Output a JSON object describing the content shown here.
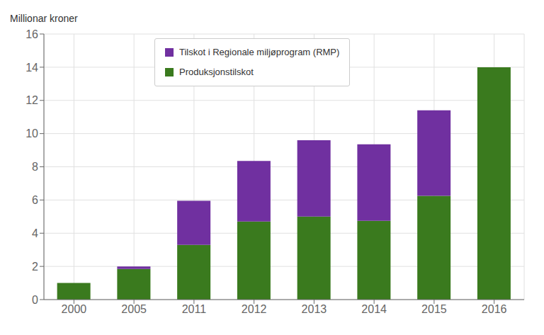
{
  "chart_data": {
    "type": "bar",
    "stacked": true,
    "ylabel": "Millionar kroner",
    "categories": [
      "2000",
      "2005",
      "2011",
      "2012",
      "2013",
      "2014",
      "2015",
      "2016"
    ],
    "series": [
      {
        "name": "Produksjonstilskot",
        "color": "#3a7a1e",
        "values": [
          1.0,
          1.85,
          3.3,
          4.7,
          5.0,
          4.75,
          6.25,
          14.0
        ]
      },
      {
        "name": "Tilskot i Regionale miljøprogram (RMP)",
        "color": "#7030a0",
        "values": [
          0.0,
          0.15,
          2.65,
          3.65,
          4.6,
          4.6,
          5.15,
          0.0
        ]
      }
    ],
    "ylim": [
      0,
      16
    ],
    "yticks": [
      0,
      2,
      4,
      6,
      8,
      10,
      12,
      14,
      16
    ],
    "grid": true,
    "legend": "upper left"
  }
}
